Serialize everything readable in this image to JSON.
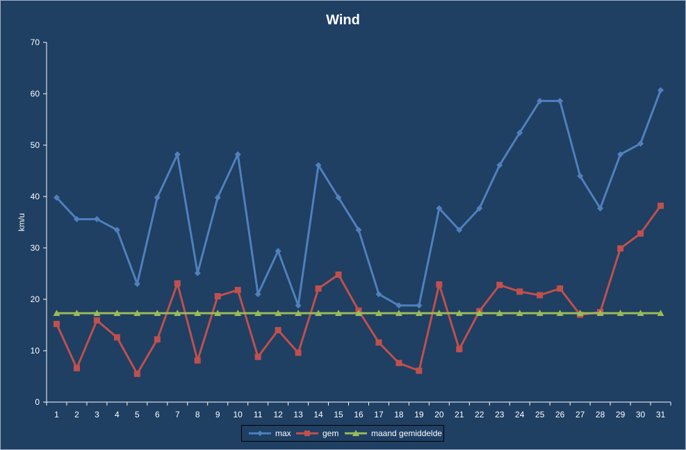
{
  "chart_data": {
    "type": "line",
    "title": "Wind",
    "xlabel": "",
    "ylabel": "km/u",
    "ylim": [
      0,
      70
    ],
    "yticks": [
      0,
      10,
      20,
      30,
      40,
      50,
      60,
      70
    ],
    "categories": [
      "1",
      "2",
      "3",
      "4",
      "5",
      "6",
      "7",
      "8",
      "9",
      "10",
      "11",
      "12",
      "13",
      "14",
      "15",
      "16",
      "17",
      "18",
      "19",
      "20",
      "21",
      "22",
      "23",
      "24",
      "25",
      "26",
      "27",
      "28",
      "29",
      "30",
      "31"
    ],
    "legend_position": "bottom",
    "grid": false,
    "series": [
      {
        "name": "max",
        "color": "#4f81bd",
        "marker": "diamond",
        "values": [
          39.8,
          35.6,
          35.6,
          33.5,
          23.0,
          39.8,
          48.2,
          25.1,
          39.8,
          48.2,
          21.0,
          29.4,
          18.8,
          46.1,
          39.8,
          33.5,
          21.0,
          18.8,
          18.8,
          37.7,
          33.5,
          37.7,
          46.1,
          52.4,
          58.6,
          58.6,
          44.0,
          37.7,
          48.2,
          50.3,
          60.7
        ]
      },
      {
        "name": "gem",
        "color": "#c0504d",
        "marker": "square",
        "values": [
          15.2,
          6.6,
          15.9,
          12.6,
          5.5,
          12.2,
          23.1,
          8.1,
          20.6,
          21.8,
          8.8,
          14.0,
          9.6,
          22.1,
          24.8,
          17.8,
          11.6,
          7.6,
          6.1,
          22.9,
          10.3,
          17.7,
          22.8,
          21.5,
          20.8,
          22.1,
          17.0,
          17.5,
          29.9,
          32.8,
          38.2
        ]
      },
      {
        "name": "maand gemiddelde",
        "color": "#9bbb59",
        "marker": "triangle",
        "values": [
          17.3,
          17.3,
          17.3,
          17.3,
          17.3,
          17.3,
          17.3,
          17.3,
          17.3,
          17.3,
          17.3,
          17.3,
          17.3,
          17.3,
          17.3,
          17.3,
          17.3,
          17.3,
          17.3,
          17.3,
          17.3,
          17.3,
          17.3,
          17.3,
          17.3,
          17.3,
          17.3,
          17.3,
          17.3,
          17.3,
          17.3
        ]
      }
    ]
  }
}
